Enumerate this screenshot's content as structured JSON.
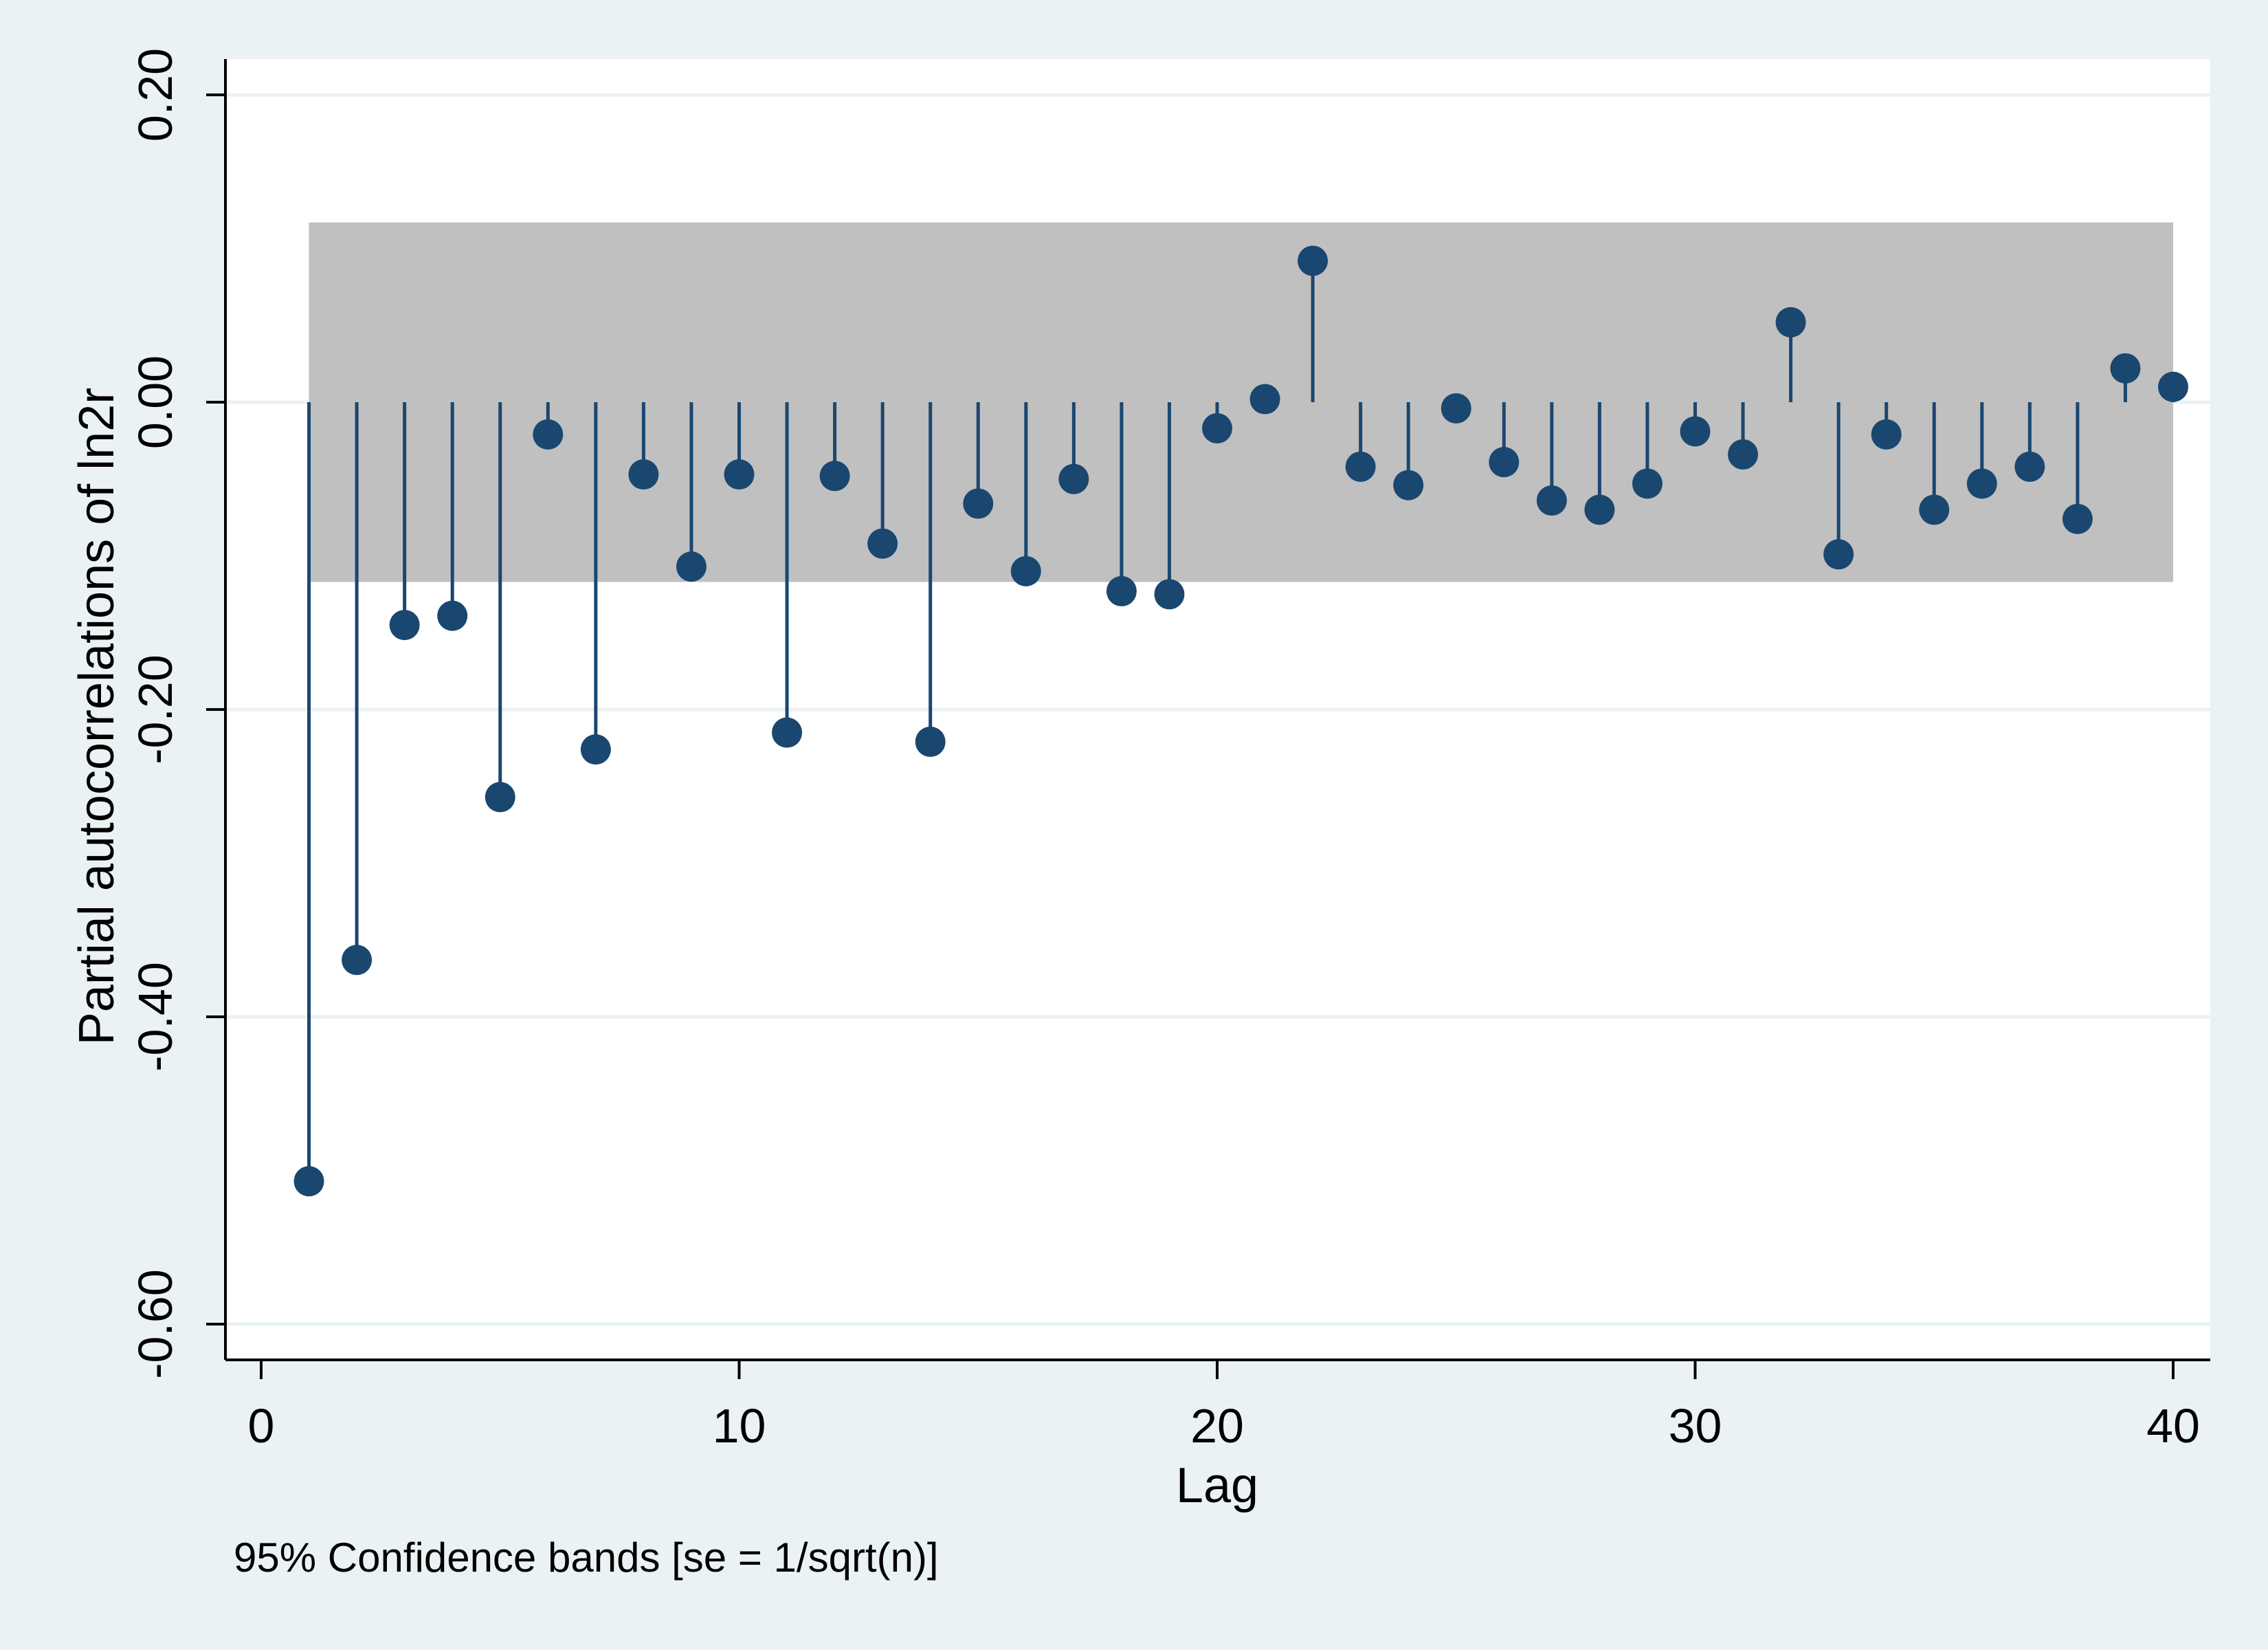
{
  "chart_data": {
    "type": "stem",
    "ylabel": "Partial autocorrelations of ln2r",
    "xlabel": "Lag",
    "note": "95% Confidence bands [se = 1/sqrt(n)]",
    "xlim": [
      0,
      40
    ],
    "ylim": [
      -0.6,
      0.2
    ],
    "x_ticks": [
      0,
      10,
      20,
      30,
      40
    ],
    "x_tick_labels": [
      "0",
      "10",
      "20",
      "30",
      "40"
    ],
    "y_ticks": [
      0.2,
      0,
      -0.2,
      -0.4,
      -0.6
    ],
    "y_tick_labels": [
      "0.20",
      "0.00",
      "-0.20",
      "-0.40",
      "-0.60"
    ],
    "confidence_band": {
      "lower": -0.117,
      "upper": 0.117,
      "from_lag": 1,
      "to_lag": 40
    },
    "grid": true,
    "lags": [
      1,
      2,
      3,
      4,
      5,
      6,
      7,
      8,
      9,
      10,
      11,
      12,
      13,
      14,
      15,
      16,
      17,
      18,
      19,
      20,
      21,
      22,
      23,
      24,
      25,
      26,
      27,
      28,
      29,
      30,
      31,
      32,
      33,
      34,
      35,
      36,
      37,
      38,
      39,
      40
    ],
    "values": [
      -0.507,
      -0.363,
      -0.145,
      -0.139,
      -0.257,
      -0.021,
      -0.226,
      -0.047,
      -0.107,
      -0.047,
      -0.215,
      -0.048,
      -0.092,
      -0.221,
      -0.066,
      -0.11,
      -0.05,
      -0.123,
      -0.125,
      -0.017,
      0.002,
      0.092,
      -0.042,
      -0.054,
      -0.004,
      -0.039,
      -0.064,
      -0.07,
      -0.053,
      -0.019,
      -0.034,
      0.052,
      -0.099,
      -0.021,
      -0.07,
      -0.053,
      -0.042,
      -0.076,
      0.022,
      0.01
    ],
    "colors": {
      "marker": "#1a476f",
      "band": "#c0c0c0",
      "plot_bg": "#ffffff",
      "outer_bg": "#eaf2f3",
      "grid": "#eaf2f3"
    }
  }
}
